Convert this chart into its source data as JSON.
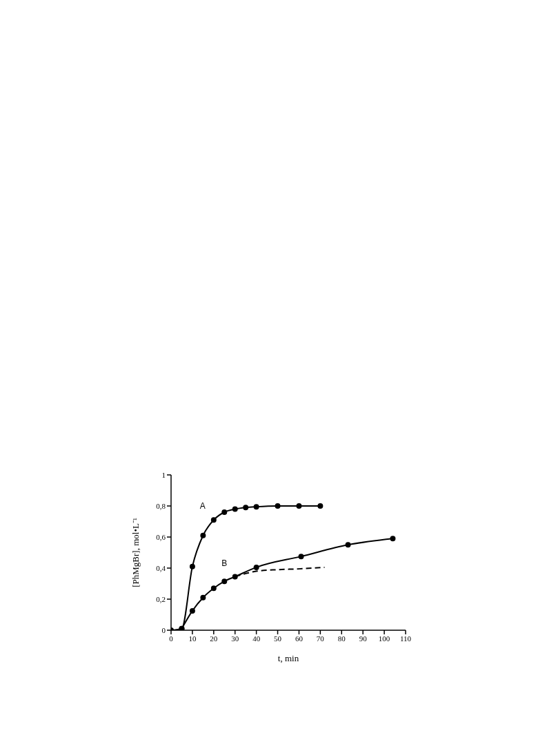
{
  "chart_data": {
    "type": "line",
    "xlabel": "t, min",
    "ylabel": "[PhMgBr], mol•L⁻¹",
    "xlim": [
      0,
      110
    ],
    "xticks": [
      0,
      10,
      20,
      30,
      40,
      50,
      60,
      70,
      80,
      90,
      100,
      110
    ],
    "ylim": [
      0,
      1
    ],
    "yticks": [
      0,
      {
        "value": 0.2,
        "label": "0,2"
      },
      {
        "value": 0.4,
        "label": "0,4"
      },
      {
        "value": 0.6,
        "label": "0,6"
      },
      {
        "value": 0.8,
        "label": "0,8"
      },
      1
    ],
    "grid": false,
    "legend": false,
    "marker": "circle",
    "line_style": "solid",
    "series": [
      {
        "name": "A",
        "color": "#000000",
        "x": [
          0,
          5,
          10,
          15,
          20,
          25,
          30,
          35,
          40,
          50,
          60,
          70
        ],
        "values": [
          0,
          0.01,
          0.41,
          0.61,
          0.71,
          0.76,
          0.78,
          0.79,
          0.795,
          0.8,
          0.8,
          0.8
        ]
      },
      {
        "name": "B",
        "color": "#000000",
        "x": [
          5,
          10,
          15,
          20,
          25,
          30,
          40,
          61,
          83,
          104
        ],
        "values": [
          0.01,
          0.125,
          0.21,
          0.27,
          0.315,
          0.345,
          0.405,
          0.475,
          0.55,
          0.59
        ]
      },
      {
        "color": "#000000",
        "marker": "none",
        "line_style": "dashed",
        "x": [
          30,
          35,
          40,
          50,
          60,
          72
        ],
        "values": [
          0.345,
          0.365,
          0.38,
          0.39,
          0.395,
          0.405
        ]
      }
    ]
  }
}
